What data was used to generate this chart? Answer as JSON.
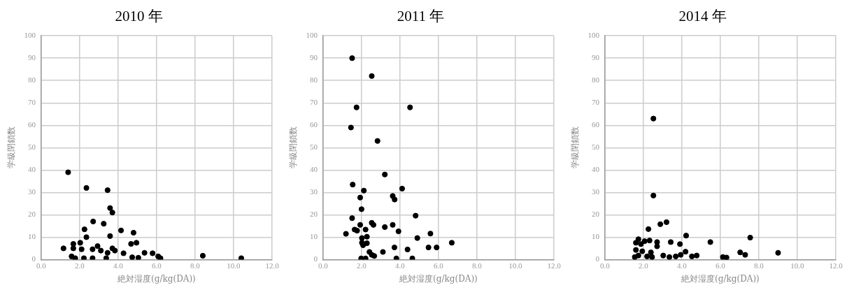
{
  "chart_data": [
    {
      "type": "scatter",
      "title": "2010 年",
      "xlabel": "絶対湿度(g/kg(DA))",
      "ylabel": "学級閉鎖数",
      "color": "#000000",
      "marker": "circle",
      "grid": true,
      "xlim": [
        0,
        12
      ],
      "ylim": [
        0,
        100
      ],
      "xticks": [
        {
          "value": 0,
          "label": "0.0"
        },
        {
          "value": 2,
          "label": "2.0"
        },
        {
          "value": 4,
          "label": "4.0"
        },
        {
          "value": 6,
          "label": "6.0"
        },
        {
          "value": 8,
          "label": "8.0"
        },
        {
          "value": 10,
          "label": "10.0"
        },
        {
          "value": 12,
          "label": "12.0"
        }
      ],
      "yticks": [
        0,
        10,
        20,
        30,
        40,
        50,
        60,
        70,
        80,
        90,
        100
      ],
      "x": [
        1.4,
        2.35,
        3.45,
        3.58,
        3.7,
        2.7,
        3.25,
        2.25,
        4.15,
        4.8,
        2.35,
        3.58,
        4.67,
        4.95,
        1.16,
        1.67,
        2.03,
        1.67,
        2.1,
        2.67,
        2.93,
        3.1,
        3.45,
        3.7,
        3.83,
        4.28,
        1.58,
        1.77,
        2.22,
        2.67,
        3.38,
        4.73,
        5.05,
        5.37,
        5.79,
        6.08,
        6.2,
        8.4,
        10.4
      ],
      "values": [
        39,
        32,
        31,
        23,
        21,
        17,
        16,
        13.5,
        13,
        12,
        10,
        10.5,
        7,
        7.5,
        5,
        7,
        7.5,
        5,
        4.6,
        4.6,
        6,
        4,
        3,
        5,
        4,
        2.8,
        1.4,
        0.6,
        0.6,
        0.6,
        0.6,
        1,
        0.8,
        3,
        2.8,
        1.4,
        0.6,
        1.7,
        0.6
      ]
    },
    {
      "type": "scatter",
      "title": "2011 年",
      "xlabel": "絶対湿度(g/kg(DA))",
      "ylabel": "学級閉鎖数",
      "color": "#000000",
      "marker": "circle",
      "grid": true,
      "xlim": [
        0,
        12
      ],
      "ylim": [
        0,
        100
      ],
      "xticks": [
        {
          "value": 0,
          "label": "0.0"
        },
        {
          "value": 2,
          "label": "2.0"
        },
        {
          "value": 4,
          "label": "4.0"
        },
        {
          "value": 6,
          "label": "6.0"
        },
        {
          "value": 8,
          "label": "8.0"
        },
        {
          "value": 10,
          "label": "10.0"
        },
        {
          "value": 12,
          "label": "12.0"
        }
      ],
      "yticks": [
        0,
        10,
        20,
        30,
        40,
        50,
        60,
        70,
        80,
        90,
        100
      ],
      "x": [
        1.51,
        2.53,
        1.74,
        4.52,
        1.45,
        2.83,
        3.21,
        1.54,
        4.11,
        2.12,
        1.93,
        3.62,
        3.72,
        2.0,
        4.81,
        1.51,
        2.53,
        2.62,
        1.93,
        3.62,
        3.21,
        1.64,
        1.77,
        2.21,
        3.92,
        1.19,
        5.58,
        2.02,
        2.28,
        4.9,
        2.02,
        2.28,
        2.08,
        6.69,
        3.71,
        4.39,
        5.48,
        5.9,
        3.11,
        2.41,
        2.53,
        2.66,
        1.98,
        2.21,
        3.81,
        4.64
      ],
      "values": [
        90,
        82,
        68,
        68,
        59,
        53,
        38,
        33.5,
        31.7,
        30.8,
        27.7,
        28.4,
        26.8,
        22.5,
        19.6,
        18.5,
        16.4,
        15.5,
        15.5,
        15.5,
        14.5,
        13.4,
        12.9,
        13.4,
        12.6,
        11.5,
        11.6,
        9.6,
        10.2,
        9.6,
        7.5,
        7.3,
        6.4,
        7.5,
        5.4,
        4.5,
        5.4,
        5.4,
        3.4,
        3.4,
        2.1,
        1.6,
        0.5,
        0.5,
        0.5,
        0.5
      ]
    },
    {
      "type": "scatter",
      "title": "2014 年",
      "xlabel": "絶対湿度(g/kg(DA))",
      "ylabel": "学級閉鎖数",
      "color": "#000000",
      "marker": "circle",
      "grid": true,
      "xlim": [
        0,
        12
      ],
      "ylim": [
        0,
        100
      ],
      "xticks": [
        {
          "value": 0,
          "label": "0.0"
        },
        {
          "value": 2,
          "label": "2.0"
        },
        {
          "value": 4,
          "label": "4.0"
        },
        {
          "value": 6,
          "label": "6.0"
        },
        {
          "value": 8,
          "label": "8.0"
        },
        {
          "value": 10,
          "label": "10.0"
        },
        {
          "value": 12,
          "label": "12.0"
        }
      ],
      "yticks": [
        0,
        10,
        20,
        30,
        40,
        50,
        60,
        70,
        80,
        90,
        100
      ],
      "x": [
        2.52,
        2.52,
        2.88,
        3.2,
        2.26,
        4.22,
        7.55,
        5.48,
        3.42,
        3.9,
        1.61,
        1.74,
        2.06,
        2.32,
        2.71,
        2.71,
        1.87,
        1.61,
        1.94,
        2.39,
        1.74,
        2.19,
        2.45,
        1.55,
        3.03,
        3.35,
        3.68,
        3.94,
        4.19,
        4.52,
        4.77,
        6.13,
        6.32,
        7.03,
        7.29,
        9.0
      ],
      "values": [
        63,
        28.6,
        15.8,
        16.7,
        13.6,
        10.7,
        9.8,
        7.8,
        7.8,
        6.9,
        7.5,
        9.1,
        8.2,
        8.5,
        7.8,
        5.9,
        6.9,
        4.3,
        3.7,
        3.2,
        1.8,
        1.4,
        1.1,
        1.1,
        1.8,
        1.1,
        1.4,
        2.1,
        3.5,
        1.4,
        1.8,
        1.1,
        0.9,
        3.2,
        2.1,
        3.0
      ]
    }
  ]
}
